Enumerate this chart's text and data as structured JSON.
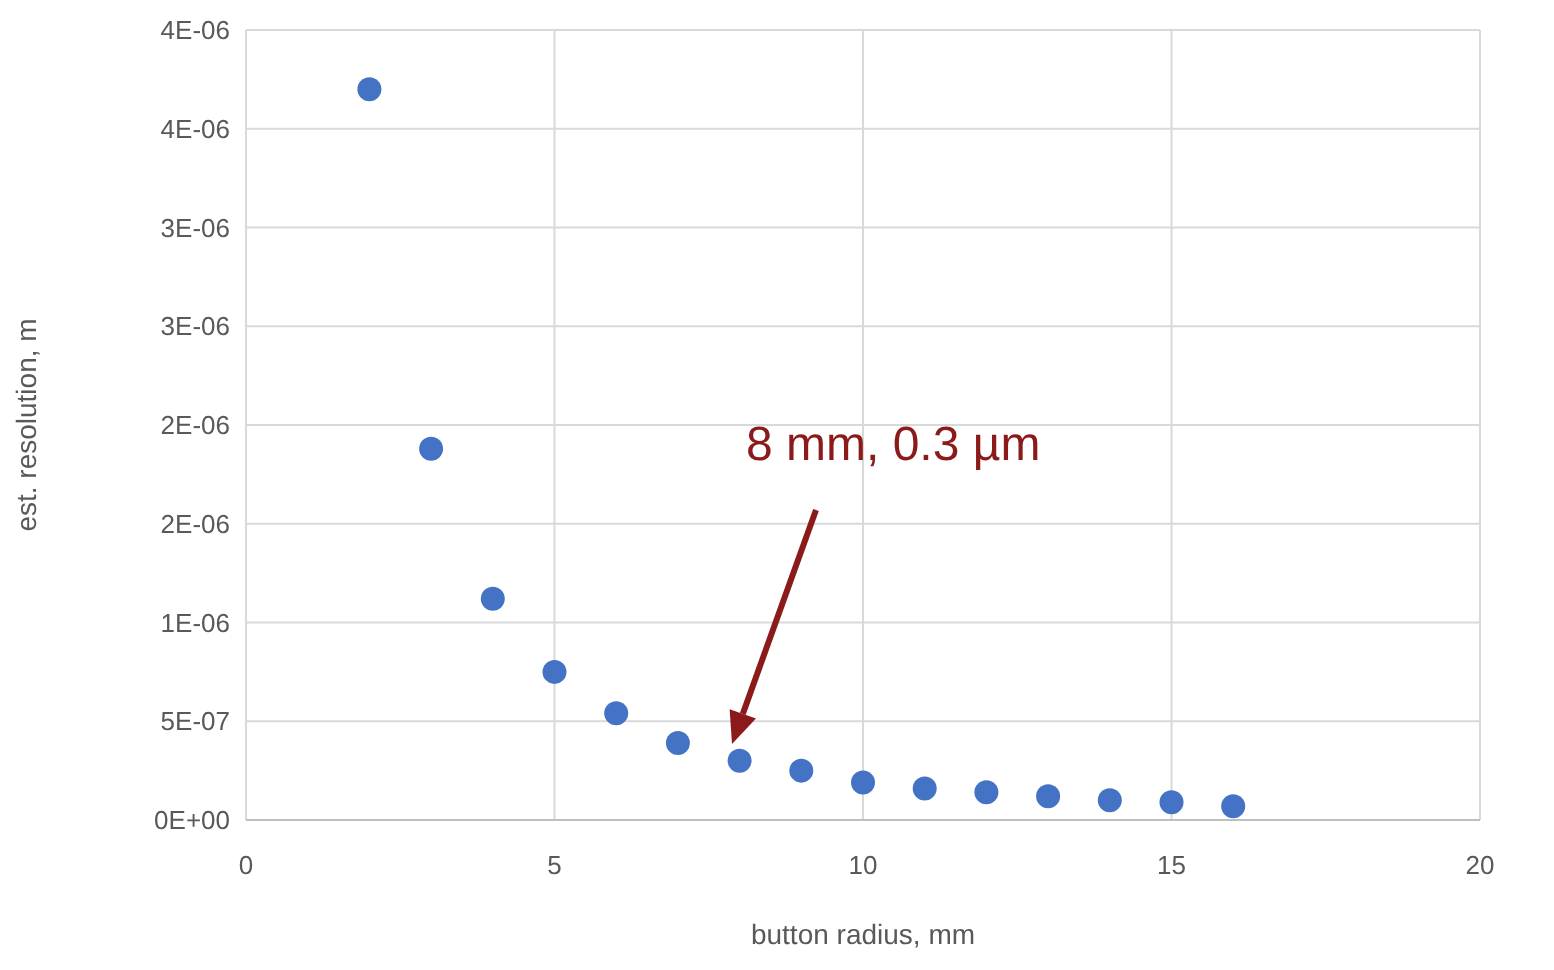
{
  "chart_data": {
    "type": "scatter",
    "xlabel": "button radius, mm",
    "ylabel": "est. resolution, m",
    "x": [
      2,
      3,
      4,
      5,
      6,
      7,
      8,
      9,
      10,
      11,
      12,
      13,
      14,
      15,
      16
    ],
    "series": [
      {
        "color": "#4472c4",
        "values": [
          3.7e-06,
          1.88e-06,
          1.12e-06,
          7.5e-07,
          5.4e-07,
          3.9e-07,
          3e-07,
          2.5e-07,
          1.9e-07,
          1.6e-07,
          1.4e-07,
          1.2e-07,
          1e-07,
          9e-08,
          7e-08
        ]
      }
    ],
    "xlim": [
      0,
      20
    ],
    "xticks": [
      0,
      5,
      10,
      15,
      20
    ],
    "ylim": [
      0,
      4e-06
    ],
    "yticks": [
      {
        "value": 0,
        "label": "0E+00"
      },
      {
        "value": 5e-07,
        "label": "5E-07"
      },
      {
        "value": 1e-06,
        "label": "1E-06"
      },
      {
        "value": 1.5e-06,
        "label": "2E-06"
      },
      {
        "value": 2e-06,
        "label": "2E-06"
      },
      {
        "value": 2.5e-06,
        "label": "3E-06"
      },
      {
        "value": 3e-06,
        "label": "3E-06"
      },
      {
        "value": 3.5e-06,
        "label": "4E-06"
      },
      {
        "value": 4e-06,
        "label": "4E-06"
      }
    ],
    "grid": true,
    "marker": "circle",
    "annotations": [
      "8 mm, 0.3 µm"
    ]
  }
}
